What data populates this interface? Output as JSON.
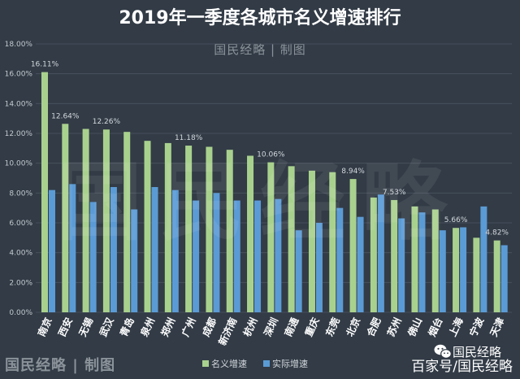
{
  "header": {
    "credit": "国民经略 | 制图"
  },
  "watermark": "国民经略",
  "footer": {
    "credit": "国民经略 | 制图",
    "wechat_account": "国民经略",
    "baijiahao": "百家号/国民经略"
  },
  "icons": {
    "wechat": "wechat-icon"
  },
  "colors": {
    "background": "#323b46",
    "nominal": "#a9d18e",
    "real": "#5b9bd5",
    "grid": "#4b5560"
  },
  "chart_data": {
    "type": "bar",
    "title": "2019年一季度各城市名义增速排行",
    "categories": [
      "南京",
      "西安",
      "无锡",
      "武汉",
      "青岛",
      "泉州",
      "郑州",
      "广州",
      "成都",
      "新济南",
      "杭州",
      "深圳",
      "南通",
      "重庆",
      "东莞",
      "北京",
      "合肥",
      "苏州",
      "佛山",
      "烟台",
      "上海",
      "宁波",
      "天津"
    ],
    "series": [
      {
        "name": "名义增速",
        "color": "#a9d18e",
        "values": [
          16.11,
          12.64,
          12.3,
          12.26,
          12.1,
          11.5,
          11.35,
          11.18,
          11.1,
          10.9,
          10.5,
          10.06,
          9.8,
          9.5,
          9.4,
          8.94,
          7.7,
          7.53,
          7.1,
          6.9,
          5.66,
          5.0,
          4.82
        ],
        "data_labels": [
          "16.11%",
          "12.64%",
          null,
          "12.26%",
          null,
          null,
          null,
          "11.18%",
          null,
          null,
          null,
          "10.06%",
          null,
          null,
          null,
          "8.94%",
          null,
          "7.53%",
          null,
          null,
          "5.66%",
          null,
          "4.82%"
        ]
      },
      {
        "name": "实际增速",
        "color": "#5b9bd5",
        "values": [
          8.2,
          8.6,
          7.4,
          8.4,
          6.9,
          8.4,
          8.2,
          7.5,
          8.0,
          7.5,
          7.5,
          7.6,
          5.5,
          6.0,
          7.0,
          6.4,
          7.9,
          6.3,
          6.7,
          5.5,
          5.7,
          7.1,
          4.5
        ]
      }
    ],
    "ylim": [
      0,
      18
    ],
    "yticks": [
      0,
      2,
      4,
      6,
      8,
      10,
      12,
      14,
      16,
      18
    ],
    "ytick_labels": [
      "0.00%",
      "2.00%",
      "4.00%",
      "6.00%",
      "8.00%",
      "10.00%",
      "12.00%",
      "14.00%",
      "16.00%",
      "18.00%"
    ],
    "grid": true,
    "legend": "bottom-center"
  }
}
